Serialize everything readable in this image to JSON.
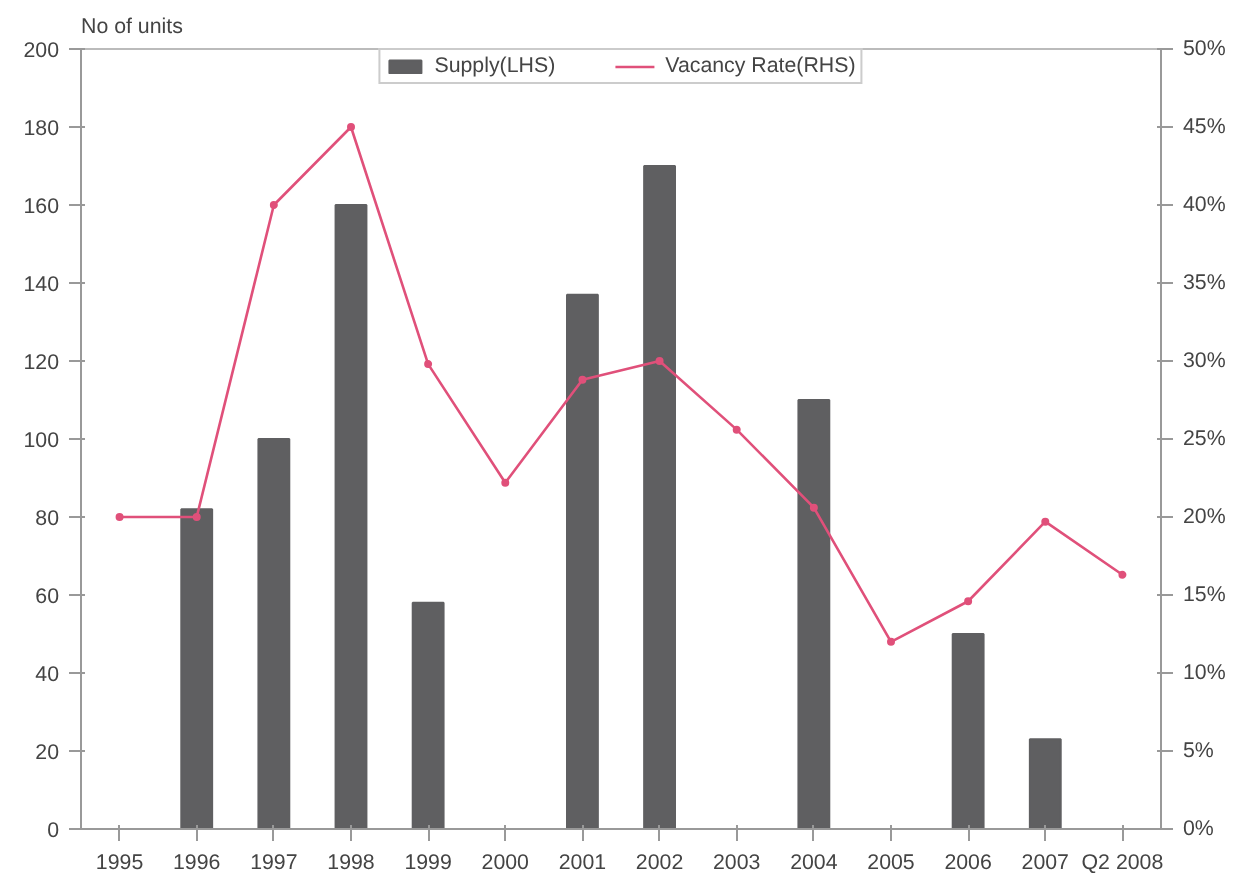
{
  "chart_data": {
    "type": "bar",
    "ylabel": "No of units",
    "categories": [
      "1995",
      "1996",
      "1997",
      "1998",
      "1999",
      "2000",
      "2001",
      "2002",
      "2003",
      "2004",
      "2005",
      "2006",
      "2007",
      "Q2 2008"
    ],
    "series": [
      {
        "name": "Supply(LHS)",
        "color": "#5f5f61",
        "values": [
          null,
          82,
          100,
          160,
          58,
          null,
          137,
          170,
          null,
          110,
          null,
          50,
          23,
          null
        ]
      },
      {
        "name": "Vacancy Rate(RHS)",
        "type": "line",
        "axis": "y2",
        "color": "#e0507a",
        "marker": "circle",
        "values": [
          20,
          20,
          40,
          45,
          29.8,
          22.2,
          28.8,
          30,
          25.6,
          20.6,
          12,
          14.6,
          19.7,
          16.3
        ]
      }
    ],
    "ylim": [
      0,
      200
    ],
    "yticks": [
      0,
      20,
      40,
      60,
      80,
      100,
      120,
      140,
      160,
      180,
      200
    ],
    "y2lim": [
      0,
      50
    ],
    "y2ticks": [
      {
        "value": 0,
        "label": "0%"
      },
      {
        "value": 5,
        "label": "5%"
      },
      {
        "value": 10,
        "label": "10%"
      },
      {
        "value": 15,
        "label": "15%"
      },
      {
        "value": 20,
        "label": "20%"
      },
      {
        "value": 25,
        "label": "25%"
      },
      {
        "value": 30,
        "label": "30%"
      },
      {
        "value": 35,
        "label": "35%"
      },
      {
        "value": 40,
        "label": "40%"
      },
      {
        "value": 45,
        "label": "45%"
      },
      {
        "value": 50,
        "label": "50%"
      }
    ],
    "legend": "top",
    "grid": false
  }
}
